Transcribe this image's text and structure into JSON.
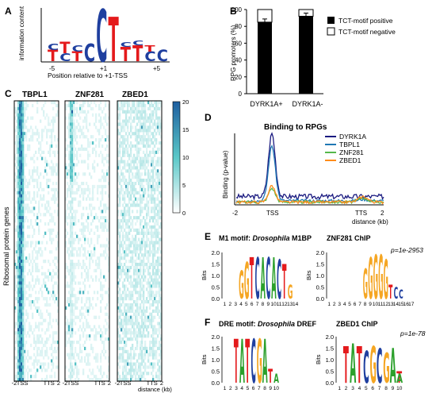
{
  "panels": {
    "A": {
      "letter": "A",
      "ylabel": "information content",
      "xlabel": "Position relative to +1-TSS",
      "ticks": [
        "-5",
        "+1",
        "+5"
      ]
    },
    "B": {
      "letter": "B",
      "ylabel": "RPG promoters (%)",
      "yticks": [
        "0",
        "20",
        "40",
        "60",
        "80",
        "100"
      ],
      "legend": [
        "TCT-motif positive",
        "TCT-motif negative"
      ]
    },
    "C": {
      "letter": "C",
      "titles": [
        "TBPL1",
        "ZNF281",
        "ZBED1"
      ],
      "ylabel": "Ribosomal protein genes",
      "xticks": [
        "-2",
        "TSS",
        "TTS",
        "2"
      ],
      "distance_label": "distance (kb)",
      "colorbar_ticks": [
        "20",
        "15",
        "10",
        "5",
        "0"
      ]
    },
    "D": {
      "letter": "D",
      "title": "Binding to RPGs",
      "ylabel": "Binding (p-value)",
      "xticks": [
        "-2",
        "TSS",
        "TTS",
        "2"
      ],
      "xlabel": "distance (kb)"
    },
    "E": {
      "letter": "E",
      "left_title_prefix": "M1 motif:",
      "left_title_species": "Drosophila",
      "left_title_name": "M1BP",
      "right_title": "ZNF281 ChIP",
      "pvalue": "p=1e-2953",
      "bits": "Bits",
      "yticks": [
        "2.0",
        "1.5",
        "1.0",
        "0.5",
        "0.0"
      ]
    },
    "F": {
      "letter": "F",
      "left_title_prefix": "DRE motif:",
      "left_title_species": "Drosophila",
      "left_title_name": "DREF",
      "right_title": "ZBED1 ChIP",
      "pvalue": "p=1e-78",
      "bits": "Bits",
      "yticks": [
        "2.0",
        "1.5",
        "1.0",
        "0.5",
        "0.0"
      ]
    }
  },
  "colors": {
    "A": "#2ca02c",
    "C": "#1f3f9f",
    "G": "#f5a623",
    "T": "#e41a1c",
    "DYRK1A": "#1a1a80",
    "TBPL1": "#1f77b4",
    "ZNF281": "#55b84a",
    "ZBED1": "#ff8c1a",
    "heat_high": "#1e5fa0",
    "heat_low": "#ffffff"
  },
  "chart_data": [
    {
      "type": "bar",
      "panel": "B",
      "categories": [
        "DYRK1A+",
        "DYRK1A-"
      ],
      "series": [
        {
          "name": "TCT-motif positive",
          "values": [
            85,
            92
          ]
        },
        {
          "name": "TCT-motif negative",
          "values": [
            15,
            8
          ]
        }
      ],
      "ylabel": "RPG promoters (%)",
      "ylim": [
        0,
        100
      ],
      "legend": "right"
    },
    {
      "type": "line",
      "panel": "D",
      "title": "Binding to RPGs",
      "xlabel": "distance (kb)",
      "ylabel": "Binding (p-value)",
      "x_ticks": [
        "-2",
        "TSS",
        "TTS",
        "2"
      ],
      "series": [
        {
          "name": "DYRK1A",
          "peak_tss": 23,
          "peak_tts": 3,
          "baseline": 3
        },
        {
          "name": "TBPL1",
          "peak_tss": 20,
          "peak_tts": 2,
          "baseline": 1.5
        },
        {
          "name": "ZNF281",
          "peak_tss": 5,
          "peak_tts": 2.5,
          "baseline": 1
        },
        {
          "name": "ZBED1",
          "peak_tss": 6,
          "peak_tts": 3,
          "baseline": 1
        }
      ],
      "legend": "top-right"
    }
  ],
  "motifs": {
    "A_letters": [
      "T",
      "C",
      "T",
      "C",
      "C",
      "T",
      "T",
      "T",
      "C",
      "C"
    ],
    "E_left_letters": [
      "G",
      "G",
      "T",
      "C",
      "A",
      "C",
      "A",
      "C",
      "T",
      "G",
      "G"
    ],
    "E_left_positions": [
      "1",
      "2",
      "3",
      "4",
      "5",
      "6",
      "7",
      "8",
      "9",
      "10",
      "11",
      "12",
      "13",
      "14"
    ],
    "E_right_letters": [
      "G",
      "G",
      "G",
      "G",
      "G",
      "T",
      "C",
      "C"
    ],
    "E_right_positions": [
      "1",
      "2",
      "3",
      "4",
      "5",
      "6",
      "7",
      "8",
      "9",
      "10",
      "11",
      "12",
      "13",
      "14",
      "15",
      "16",
      "17"
    ],
    "F_left_letters": [
      "T",
      "A",
      "T",
      "C",
      "G",
      "A",
      "T",
      "A"
    ],
    "F_left_positions": [
      "1",
      "2",
      "3",
      "4",
      "5",
      "6",
      "7",
      "8",
      "9",
      "10"
    ],
    "F_right_letters": [
      "T",
      "A",
      "T",
      "C",
      "G",
      "C",
      "G",
      "A",
      "T",
      "A"
    ],
    "F_right_positions": [
      "1",
      "2",
      "3",
      "4",
      "5",
      "6",
      "7",
      "8",
      "9",
      "10"
    ]
  }
}
